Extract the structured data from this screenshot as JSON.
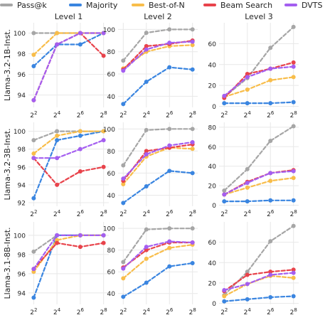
{
  "legend": [
    {
      "label": "Pass@k",
      "color": "#a6a6a6"
    },
    {
      "label": "Majority",
      "color": "#3a85e0"
    },
    {
      "label": "Best-of-N",
      "color": "#f8bd4a"
    },
    {
      "label": "Beam Search",
      "color": "#e8434b"
    },
    {
      "label": "DVTS",
      "color": "#a45ef0"
    }
  ],
  "chart_data": {
    "type": "line",
    "x_ticks": [
      "2^2",
      "2^4",
      "2^6",
      "2^8"
    ],
    "x": [
      2,
      4,
      6,
      8
    ],
    "column_titles": [
      "Level 1",
      "Level 2",
      "Level 3"
    ],
    "row_labels": [
      "Llama-3.2-1B-Inst.",
      "Llama-3.2-3B-Inst.",
      "Llama-3.1-8B-Inst."
    ],
    "series_names": [
      "Pass@k",
      "Majority",
      "Best-of-N",
      "Beam Search",
      "DVTS"
    ],
    "panels": [
      {
        "row": 0,
        "col": 0,
        "ylim": [
          92.8,
          101.0
        ],
        "yticks": [
          94,
          96,
          98,
          100
        ],
        "series": {
          "Pass@k": [
            100,
            100,
            100,
            100
          ],
          "Majority": [
            96.8,
            98.9,
            98.9,
            100
          ],
          "Best-of-N": [
            97.9,
            100,
            100,
            100
          ],
          "Beam Search": [
            93.5,
            98.9,
            100,
            97.8
          ],
          "DVTS": [
            93.5,
            98.9,
            100,
            100
          ]
        }
      },
      {
        "row": 0,
        "col": 1,
        "ylim": [
          30,
          106
        ],
        "yticks": [
          40,
          60,
          80,
          100
        ],
        "series": {
          "Pass@k": [
            72,
            97,
            100,
            100
          ],
          "Majority": [
            33,
            53,
            66,
            64
          ],
          "Best-of-N": [
            65,
            80,
            85,
            86
          ],
          "Beam Search": [
            64,
            85,
            87,
            90
          ],
          "DVTS": [
            63,
            82,
            88,
            89
          ]
        }
      },
      {
        "row": 0,
        "col": 2,
        "ylim": [
          -1,
          80
        ],
        "yticks": [
          0,
          20,
          40,
          60
        ],
        "series": {
          "Pass@k": [
            9,
            27,
            56,
            76
          ],
          "Majority": [
            3,
            3,
            3,
            4
          ],
          "Best-of-N": [
            9,
            16,
            25,
            28
          ],
          "Beam Search": [
            8,
            31,
            36,
            42
          ],
          "DVTS": [
            10,
            28,
            36,
            38
          ]
        }
      },
      {
        "row": 1,
        "col": 0,
        "ylim": [
          91.6,
          101.0
        ],
        "yticks": [
          92,
          94,
          96,
          98,
          100
        ],
        "series": {
          "Pass@k": [
            99,
            100,
            100,
            100
          ],
          "Majority": [
            92.5,
            99,
            99.5,
            100
          ],
          "Best-of-N": [
            97.5,
            99.5,
            100,
            100
          ],
          "Beam Search": [
            97,
            94,
            95.5,
            96
          ],
          "DVTS": [
            97,
            97,
            98,
            99
          ]
        }
      },
      {
        "row": 1,
        "col": 1,
        "ylim": [
          30,
          106
        ],
        "yticks": [
          40,
          60,
          80,
          100
        ],
        "series": {
          "Pass@k": [
            67,
            99,
            100,
            100
          ],
          "Majority": [
            33,
            48,
            62,
            60
          ],
          "Best-of-N": [
            50,
            75,
            83,
            82
          ],
          "Beam Search": [
            53,
            80,
            83,
            86
          ],
          "DVTS": [
            55,
            77,
            85,
            88
          ]
        }
      },
      {
        "row": 1,
        "col": 2,
        "ylim": [
          -1,
          85
        ],
        "yticks": [
          0,
          20,
          40,
          60,
          80
        ],
        "series": {
          "Pass@k": [
            15,
            37,
            66,
            81
          ],
          "Majority": [
            4,
            4,
            5,
            5
          ],
          "Best-of-N": [
            11,
            18,
            25,
            28
          ],
          "Beam Search": [
            11,
            24,
            33,
            36
          ],
          "DVTS": [
            11,
            23,
            33,
            35
          ]
        }
      },
      {
        "row": 2,
        "col": 0,
        "ylim": [
          92.8,
          101.4
        ],
        "yticks": [
          94,
          96,
          98,
          100
        ],
        "series": {
          "Pass@k": [
            98.3,
            100,
            100,
            100
          ],
          "Majority": [
            93.5,
            100,
            100,
            100
          ],
          "Best-of-N": [
            96.2,
            99.5,
            100,
            100
          ],
          "Beam Search": [
            96.5,
            99.2,
            98.8,
            99.2
          ],
          "DVTS": [
            96.5,
            100,
            100,
            100
          ]
        }
      },
      {
        "row": 2,
        "col": 1,
        "ylim": [
          30,
          106
        ],
        "yticks": [
          40,
          60,
          80,
          100
        ],
        "series": {
          "Pass@k": [
            69,
            99,
            100,
            100
          ],
          "Majority": [
            37,
            50,
            65,
            68
          ],
          "Best-of-N": [
            54,
            72,
            82,
            85
          ],
          "Beam Search": [
            64,
            80,
            87,
            87
          ],
          "DVTS": [
            63,
            83,
            88,
            87
          ]
        }
      },
      {
        "row": 2,
        "col": 2,
        "ylim": [
          -1,
          80
        ],
        "yticks": [
          0,
          20,
          40,
          60
        ],
        "series": {
          "Pass@k": [
            8,
            31,
            61,
            76
          ],
          "Majority": [
            2,
            4,
            6,
            7
          ],
          "Best-of-N": [
            7,
            19,
            27,
            25
          ],
          "Beam Search": [
            12,
            28,
            31,
            33
          ],
          "DVTS": [
            13,
            19,
            28,
            30
          ]
        }
      }
    ]
  }
}
